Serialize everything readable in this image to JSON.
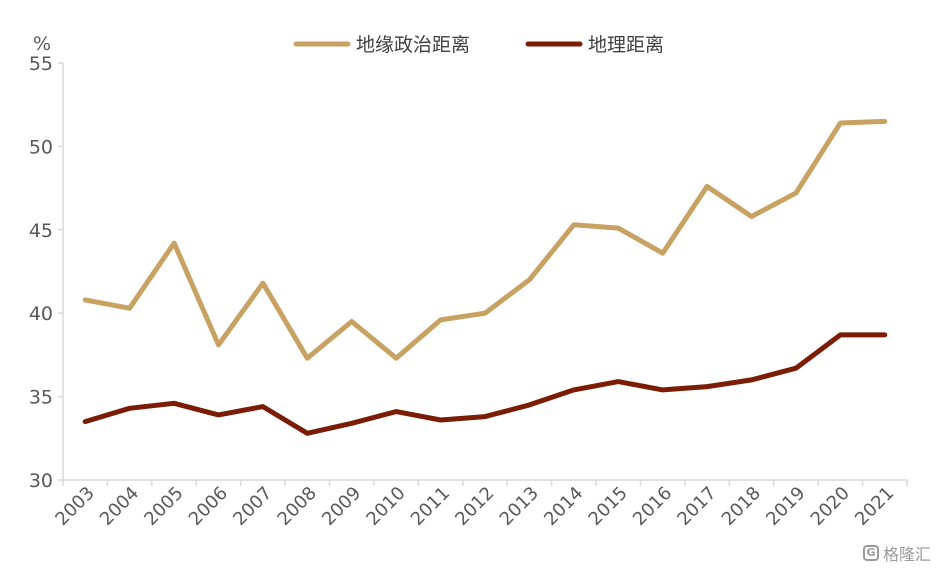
{
  "chart_data": {
    "type": "line",
    "title": "",
    "xlabel": "",
    "ylabel": "%",
    "ylim": [
      30,
      55
    ],
    "yticks": [
      30,
      35,
      40,
      45,
      50,
      55
    ],
    "grid": false,
    "legend_position": "top",
    "categories": [
      "2003",
      "2004",
      "2005",
      "2006",
      "2007",
      "2008",
      "2009",
      "2010",
      "2011",
      "2012",
      "2013",
      "2014",
      "2015",
      "2016",
      "2017",
      "2018",
      "2019",
      "2020",
      "2021"
    ],
    "series": [
      {
        "name": "地缘政治距离",
        "color": "#c8a263",
        "values": [
          40.8,
          40.3,
          44.2,
          38.1,
          41.8,
          37.3,
          39.5,
          37.3,
          39.6,
          40.0,
          42.0,
          45.3,
          45.1,
          43.6,
          47.6,
          45.8,
          47.2,
          51.4,
          51.5
        ]
      },
      {
        "name": "地理距离",
        "color": "#7b1c05",
        "values": [
          33.5,
          34.3,
          34.6,
          33.9,
          34.4,
          32.8,
          33.4,
          34.1,
          33.6,
          33.8,
          34.5,
          35.4,
          35.9,
          35.4,
          35.6,
          36.0,
          36.7,
          38.7,
          38.7
        ]
      }
    ]
  },
  "watermark": {
    "text": "格隆汇",
    "icon_text": "G"
  }
}
